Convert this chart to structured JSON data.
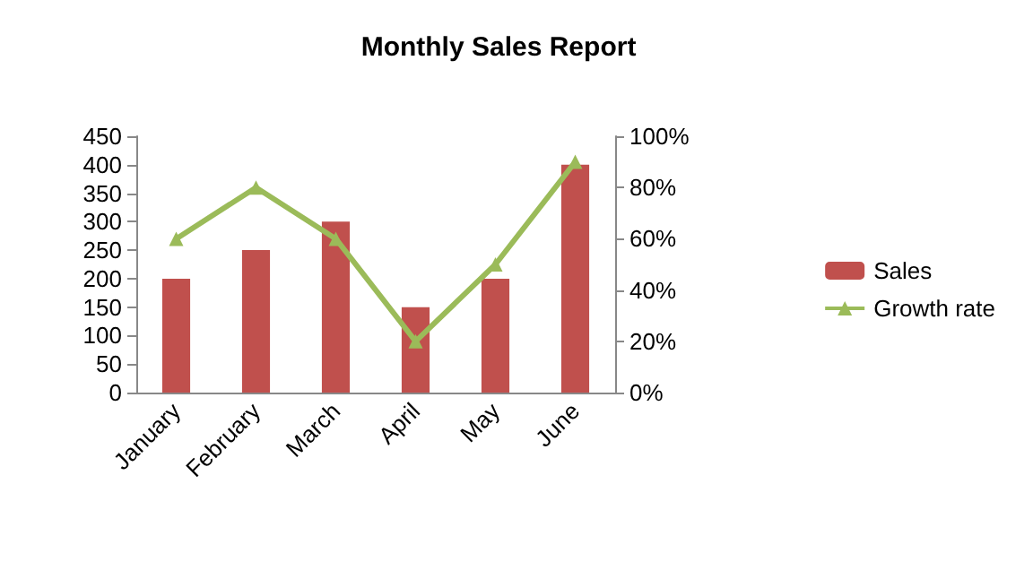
{
  "chart_data": {
    "type": "bar",
    "title": "Monthly Sales Report",
    "categories": [
      "January",
      "February",
      "March",
      "April",
      "May",
      "June"
    ],
    "series": [
      {
        "name": "Sales",
        "color": "#c0504d",
        "values": [
          200,
          250,
          300,
          150,
          200,
          400
        ]
      },
      {
        "name": "Growth rate",
        "type": "line",
        "axis": "y2",
        "color": "#9bbb59",
        "values": [
          60,
          80,
          60,
          20,
          50,
          90
        ]
      }
    ],
    "ylim": [
      0,
      450
    ],
    "yticks": [
      0,
      50,
      100,
      150,
      200,
      250,
      300,
      350,
      400,
      450
    ],
    "y2lim": [
      0,
      100
    ],
    "y2ticks": [
      {
        "value": 0,
        "label": "0%"
      },
      {
        "value": 20,
        "label": "20%"
      },
      {
        "value": 40,
        "label": "40%"
      },
      {
        "value": 60,
        "label": "60%"
      },
      {
        "value": 80,
        "label": "80%"
      },
      {
        "value": 100,
        "label": "100%"
      }
    ],
    "grid": false,
    "legend": "right",
    "marker": "triangle"
  }
}
